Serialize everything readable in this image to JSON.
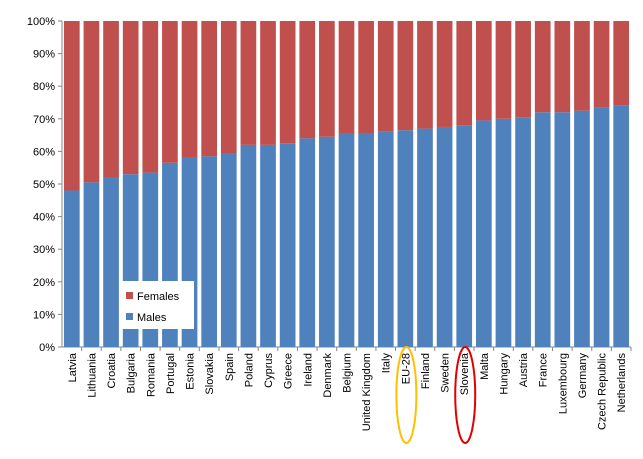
{
  "chart_data": {
    "type": "bar",
    "stacked": true,
    "percent": true,
    "categories": [
      "Latvia",
      "Lithuania",
      "Croatia",
      "Bulgaria",
      "Romania",
      "Portugal",
      "Estonia",
      "Slovakia",
      "Spain",
      "Poland",
      "Cyprus",
      "Greece",
      "Ireland",
      "Denmark",
      "Belgium",
      "United Kingdom",
      "Italy",
      "EU-28",
      "Finland",
      "Sweden",
      "Slovenia",
      "Malta",
      "Hungary",
      "Austria",
      "France",
      "Luxembourg",
      "Germany",
      "Czech Republic",
      "Netherlands"
    ],
    "series": [
      {
        "name": "Males",
        "color": "#4f81bd",
        "values": [
          48,
          50.5,
          52,
          53,
          53.5,
          56.5,
          58,
          58.5,
          59.5,
          62,
          62,
          62.5,
          64,
          64.5,
          65.5,
          65.5,
          66,
          66.5,
          67,
          67.5,
          68,
          69.5,
          70,
          70.5,
          72,
          72,
          72.5,
          73.5,
          74
        ]
      },
      {
        "name": "Females",
        "color": "#c0504d",
        "values": [
          52,
          49.5,
          48,
          47,
          46.5,
          43.5,
          42,
          41.5,
          40.5,
          38,
          38,
          37.5,
          36,
          35.5,
          34.5,
          34.5,
          34,
          33.5,
          33,
          32.5,
          32,
          30.5,
          30,
          29.5,
          28,
          28,
          27.5,
          26.5,
          26
        ]
      }
    ],
    "yticks": [
      "0%",
      "10%",
      "20%",
      "30%",
      "40%",
      "50%",
      "60%",
      "70%",
      "80%",
      "90%",
      "100%"
    ],
    "ylim": [
      0,
      100
    ],
    "legend": {
      "placement": "lower-left-inside",
      "entries": [
        "Females",
        "Males"
      ]
    },
    "highlights": [
      {
        "category": "EU-28",
        "color": "#ffc000"
      },
      {
        "category": "Slovenia",
        "color": "#e00000"
      }
    ],
    "grid": false
  }
}
